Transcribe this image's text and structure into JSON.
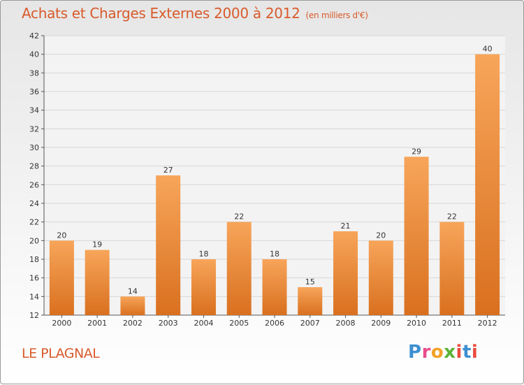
{
  "title": "Achats et Charges Externes 2000 à 2012",
  "unit": "(en milliers d'€)",
  "commune": "LE PLAGNAL",
  "logo": {
    "p": "P",
    "r": "r",
    "o": "o",
    "x": "x",
    "i1": "i",
    "t": "t",
    "i2": "i"
  },
  "colors": {
    "bar_light": "#f7a55a",
    "bar_dark": "#d9701f",
    "title": "#d85a2b",
    "grid": "#d6d6d6"
  },
  "chart_data": {
    "type": "bar",
    "title": "Achats et Charges Externes 2000 à 2012",
    "xlabel": "",
    "ylabel": "",
    "ylim": [
      12,
      42
    ],
    "yticks": [
      12,
      14,
      16,
      18,
      20,
      22,
      24,
      26,
      28,
      30,
      32,
      34,
      36,
      38,
      40,
      42
    ],
    "grid": true,
    "categories": [
      "2000",
      "2001",
      "2002",
      "2003",
      "2004",
      "2005",
      "2006",
      "2007",
      "2008",
      "2009",
      "2010",
      "2011",
      "2012"
    ],
    "values": [
      20,
      19,
      14,
      27,
      18,
      22,
      18,
      15,
      21,
      20,
      29,
      22,
      40
    ]
  }
}
